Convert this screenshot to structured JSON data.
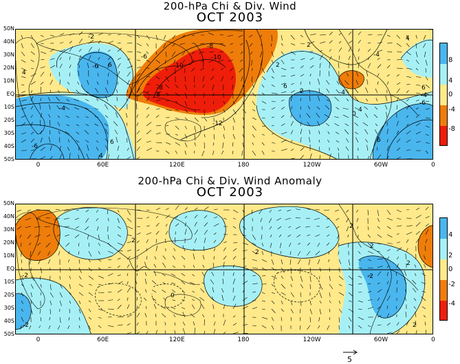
{
  "maps": [
    {
      "title": "200-hPa Chi & Div. Wind",
      "subtitle": "OCT 2003",
      "y_labels": [
        "50N",
        "40N",
        "30N",
        "20N",
        "10N",
        "EQ",
        "10S",
        "20S",
        "30S",
        "40S",
        "50S"
      ],
      "x_labels": [
        "0",
        "60E",
        "120E",
        "180",
        "120W",
        "60W",
        "0"
      ],
      "colorbar_labels": [
        "8",
        "4",
        "0",
        "-4",
        "-8"
      ],
      "contour_labels": [
        "-2",
        "-6",
        "-4",
        "-8",
        "-10",
        "-10",
        "-8",
        "-6",
        "-8",
        "-12",
        "-4",
        "-6",
        "-4",
        "-6",
        "4",
        "6",
        "6",
        "4",
        "2",
        "6",
        "4",
        "2",
        "4",
        "6",
        "0",
        "2",
        "-4",
        "6"
      ],
      "colors": {
        "pos_light": "#a6f0f5",
        "pos_dark": "#4ab6ee",
        "neutral": "#ffe98a",
        "neg_light": "#ee7d0a",
        "neg_dark": "#ee1e0a"
      }
    },
    {
      "title": "200-hPa Chi & Div. Wind Anomaly",
      "subtitle": "OCT 2003",
      "y_labels": [
        "50N",
        "40N",
        "30N",
        "20N",
        "10N",
        "EQ",
        "10S",
        "20S",
        "30S",
        "40S",
        "50S"
      ],
      "x_labels": [
        "0",
        "60E",
        "120E",
        "180",
        "120W",
        "60W",
        "0"
      ],
      "colorbar_labels": [
        "4",
        "2",
        "0",
        "-2",
        "-4"
      ],
      "contour_labels": [
        "-2",
        "-2",
        "0",
        "2",
        "-2",
        "2",
        "2",
        "2",
        "2",
        "2"
      ],
      "colors": {
        "pos_light": "#a6f0f5",
        "pos_dark": "#4ab6ee",
        "neutral": "#ffe98a",
        "neg_light": "#ee7d0a",
        "neg_dark": "#ee1e0a"
      }
    }
  ],
  "reference_vector": {
    "label": "5"
  }
}
